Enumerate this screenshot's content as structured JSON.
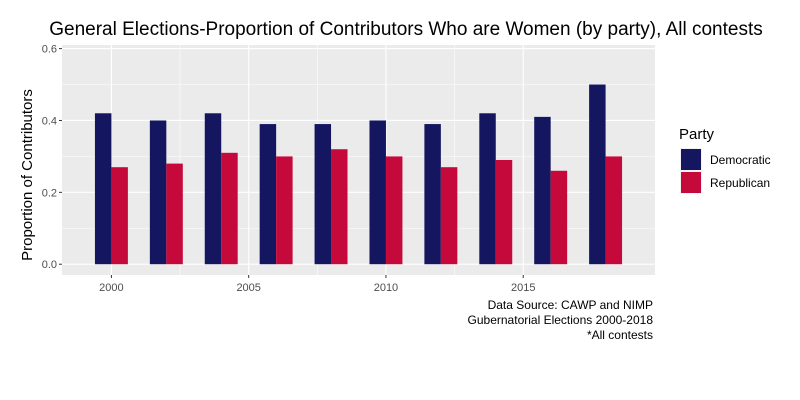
{
  "chart_data": {
    "type": "bar",
    "title": "General Elections-Proportion of Contributors Who are Women (by party), All contests",
    "xlabel": "",
    "ylabel": "Proportion of Contributors",
    "x": [
      2000,
      2002,
      2004,
      2006,
      2008,
      2010,
      2012,
      2014,
      2016,
      2018
    ],
    "series": [
      {
        "name": "Democratic",
        "color": "#141760",
        "values": [
          0.42,
          0.4,
          0.42,
          0.39,
          0.39,
          0.4,
          0.39,
          0.42,
          0.41,
          0.5
        ]
      },
      {
        "name": "Republican",
        "color": "#c6093b",
        "values": [
          0.27,
          0.28,
          0.31,
          0.3,
          0.32,
          0.3,
          0.27,
          0.29,
          0.26,
          0.3
        ]
      }
    ],
    "xlim": [
      1998.2,
      2019.8
    ],
    "ylim": [
      -0.03,
      0.61
    ],
    "x_ticks": [
      2000,
      2005,
      2010,
      2015
    ],
    "y_ticks": [
      0.0,
      0.2,
      0.4,
      0.6
    ],
    "y_tick_labels": [
      "0.0",
      "0.2",
      "0.4",
      "0.6"
    ],
    "grid": true,
    "legend": {
      "title": "Party",
      "position": "right"
    },
    "caption_lines": [
      "Data Source: CAWP and NIMP",
      "Gubernatorial Elections 2000-2018",
      "*All contests"
    ],
    "colors": {
      "panel_background": "#ebebeb",
      "grid": "#ffffff"
    }
  }
}
